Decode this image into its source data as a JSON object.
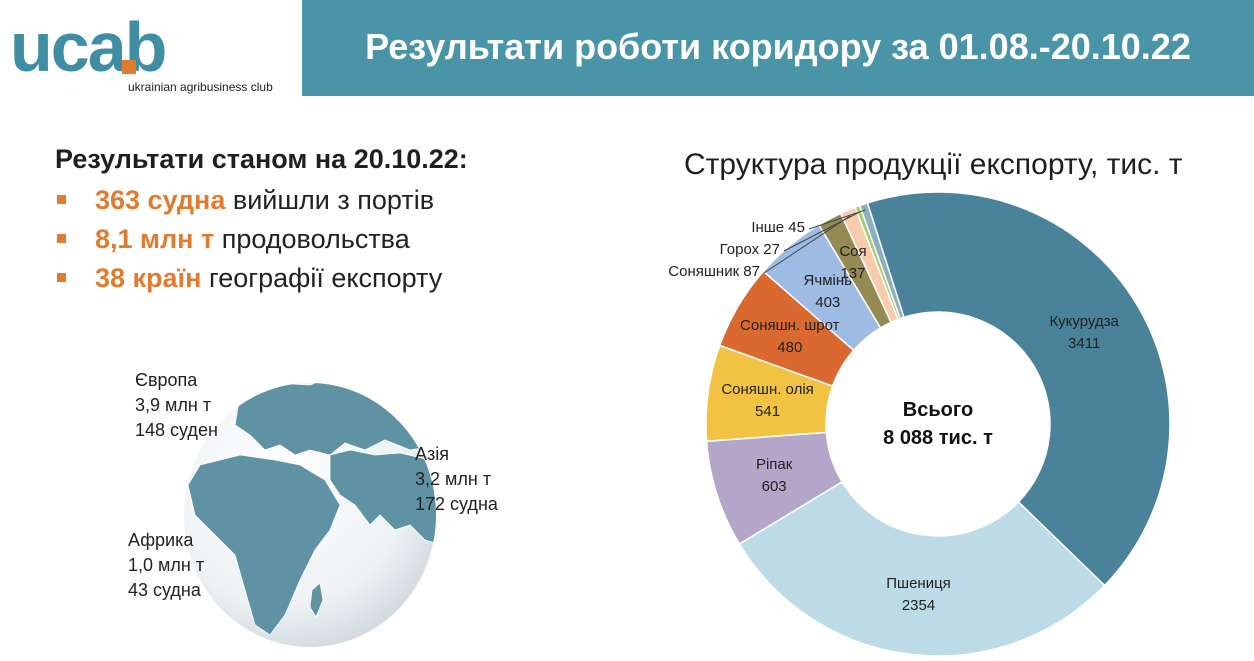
{
  "logo": {
    "wordmark": "ucab",
    "subtitle": "ukrainian agribusiness club"
  },
  "header": {
    "title": "Результати роботи коридору за 01.08.-20.10.22"
  },
  "results": {
    "title": "Результати станом на 20.10.22:",
    "items": [
      {
        "highlight": "363 судна",
        "text": " вийшли з портів"
      },
      {
        "highlight": "8,1 млн т",
        "text": " продовольства"
      },
      {
        "highlight": "38 країн",
        "text": " географії експорту"
      }
    ]
  },
  "regions": {
    "europe": [
      "Європа",
      "3,9 млн т",
      "148 суден"
    ],
    "asia": [
      "Азія",
      "3,2 млн т",
      "172 судна"
    ],
    "africa": [
      "Африка",
      "1,0 млн т",
      "43 судна"
    ]
  },
  "chart_data": {
    "type": "pie",
    "title": "Структура продукції експорту, тис. т",
    "center_label": [
      "Всього",
      "8 088 тис. т"
    ],
    "slices": [
      {
        "name": "Кукурудза",
        "value": 3411,
        "label": "3411",
        "color": "#4a8299"
      },
      {
        "name": "Пшениця",
        "value": 2354,
        "label": "2354",
        "color": "#bcdbe6"
      },
      {
        "name": "Ріпак",
        "value": 603,
        "label": "603",
        "color": "#b3a6c9"
      },
      {
        "name": "Соняшн. олія",
        "value": 541,
        "label": "541",
        "color": "#f2c342"
      },
      {
        "name": "Соняшн. шрот",
        "value": 480,
        "label": "480",
        "color": "#d9692e"
      },
      {
        "name": "Ячмінь",
        "value": 403,
        "label": "403",
        "color": "#9dbbe3"
      },
      {
        "name": "Соя",
        "value": 137,
        "label": "137",
        "color": "#948a54"
      },
      {
        "name": "Соняшник",
        "value": 87,
        "label": "87",
        "color": "#f7ccae"
      },
      {
        "name": "Горох",
        "value": 27,
        "label": "27",
        "color": "#a6cf6b"
      },
      {
        "name": "Інше",
        "value": 45,
        "label": "45",
        "color": "#8cafc0"
      }
    ]
  }
}
